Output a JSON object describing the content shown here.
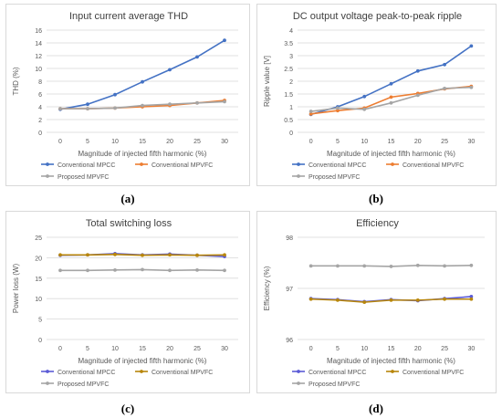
{
  "colors": {
    "conventional_mpcc_a": "#4472C4",
    "conventional_mpvfc_a": "#ED7D31",
    "proposed_mpvfc": "#A5A5A5",
    "conventional_mpcc_c": "#5B5BD6",
    "conventional_mpvfc_c": "#B8860B",
    "gridline": "#D9D9D9",
    "axis_text": "#595959"
  },
  "chart_data": [
    {
      "id": "a",
      "caption": "(a)",
      "type": "line",
      "title": "Input current average THD",
      "xlabel": "Magnitude of injected fifth harmonic (%)",
      "ylabel": "THD (%)",
      "ylim": [
        0,
        16
      ],
      "ytick_step": 2,
      "ytick_labels": [
        "0",
        "2",
        "4",
        "6",
        "8",
        "10",
        "12",
        "14",
        "16"
      ],
      "x": [
        0,
        5,
        10,
        15,
        20,
        25,
        30
      ],
      "xtick_labels": [
        "0",
        "5",
        "10",
        "15",
        "20",
        "25",
        "30"
      ],
      "grid": true,
      "legend_position": "bottom",
      "series": [
        {
          "name": "Conventional MPCC",
          "color_key": "conventional_mpcc_a",
          "values": [
            3.6,
            4.4,
            5.9,
            7.9,
            9.8,
            11.8,
            14.4
          ]
        },
        {
          "name": "Conventional MPVFC",
          "color_key": "conventional_mpvfc_a",
          "values": [
            3.7,
            3.7,
            3.8,
            4.0,
            4.2,
            4.6,
            5.0
          ]
        },
        {
          "name": "Proposed MPVFC",
          "color_key": "proposed_mpvfc",
          "values": [
            3.7,
            3.7,
            3.8,
            4.2,
            4.4,
            4.6,
            4.8
          ]
        }
      ]
    },
    {
      "id": "b",
      "caption": "(b)",
      "type": "line",
      "title": "DC output voltage peak-to-peak ripple",
      "xlabel": "Magnitude of injected fifth harmonic (%)",
      "ylabel": "Ripple value [V]",
      "ylim": [
        0,
        4
      ],
      "ytick_step": 0.5,
      "ytick_labels": [
        "0",
        "0.5",
        "1",
        "1.5",
        "2",
        "2.5",
        "3",
        "3.5",
        "4"
      ],
      "x": [
        0,
        5,
        10,
        15,
        20,
        25,
        30
      ],
      "xtick_labels": [
        "0",
        "5",
        "10",
        "15",
        "20",
        "25",
        "30"
      ],
      "grid": true,
      "legend_position": "bottom",
      "series": [
        {
          "name": "Conventional MPCC",
          "color_key": "conventional_mpcc_a",
          "values": [
            0.7,
            1.0,
            1.4,
            1.9,
            2.4,
            2.65,
            3.38
          ]
        },
        {
          "name": "Conventional MPVFC",
          "color_key": "conventional_mpvfc_a",
          "values": [
            0.72,
            0.85,
            0.95,
            1.38,
            1.52,
            1.7,
            1.8
          ]
        },
        {
          "name": "Proposed MPVFC",
          "color_key": "proposed_mpvfc",
          "values": [
            0.82,
            0.95,
            0.9,
            1.15,
            1.45,
            1.72,
            1.76
          ]
        }
      ]
    },
    {
      "id": "c",
      "caption": "(c)",
      "type": "line",
      "title": "Total switching loss",
      "xlabel": "Magnitude of injected fifth harmonic (%)",
      "ylabel": "Power loss (W)",
      "ylim": [
        0,
        25
      ],
      "ytick_step": 5,
      "ytick_labels": [
        "0",
        "5",
        "10",
        "15",
        "20",
        "25"
      ],
      "x": [
        0,
        5,
        10,
        15,
        20,
        25,
        30
      ],
      "xtick_labels": [
        "0",
        "5",
        "10",
        "15",
        "20",
        "25",
        "30"
      ],
      "grid": true,
      "legend_position": "bottom",
      "series": [
        {
          "name": "Conventional MPCC",
          "color_key": "conventional_mpcc_c",
          "values": [
            20.6,
            20.7,
            21.0,
            20.7,
            20.9,
            20.6,
            20.3
          ]
        },
        {
          "name": "Conventional MPVFC",
          "color_key": "conventional_mpvfc_c",
          "values": [
            20.7,
            20.7,
            20.8,
            20.6,
            20.7,
            20.6,
            20.7
          ]
        },
        {
          "name": "Proposed MPVFC",
          "color_key": "proposed_mpvfc",
          "values": [
            16.9,
            16.9,
            17.0,
            17.1,
            16.9,
            17.0,
            16.9
          ]
        }
      ]
    },
    {
      "id": "d",
      "caption": "(d)",
      "type": "line",
      "title": "Efficiency",
      "xlabel": "Magnitude of injected fifth harmonic (%)",
      "ylabel": "Efficiency (%)",
      "ylim": [
        96,
        98
      ],
      "ytick_step": 1,
      "ytick_labels": [
        "96",
        "97",
        "98"
      ],
      "x": [
        0,
        5,
        10,
        15,
        20,
        25,
        30
      ],
      "xtick_labels": [
        "0",
        "5",
        "10",
        "15",
        "20",
        "25",
        "30"
      ],
      "grid": true,
      "legend_position": "bottom",
      "series": [
        {
          "name": "Conventional MPCC",
          "color_key": "conventional_mpcc_c",
          "values": [
            96.8,
            96.78,
            96.74,
            96.78,
            96.76,
            96.8,
            96.84
          ]
        },
        {
          "name": "Conventional MPVFC",
          "color_key": "conventional_mpvfc_c",
          "values": [
            96.79,
            96.77,
            96.73,
            96.77,
            96.77,
            96.79,
            96.79
          ]
        },
        {
          "name": "Proposed MPVFC",
          "color_key": "proposed_mpvfc",
          "values": [
            97.44,
            97.44,
            97.44,
            97.43,
            97.45,
            97.44,
            97.45
          ]
        }
      ]
    }
  ]
}
